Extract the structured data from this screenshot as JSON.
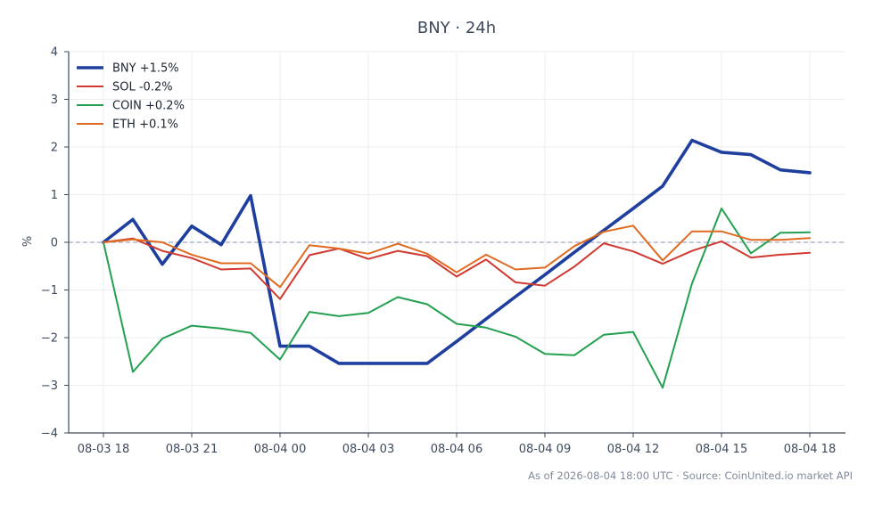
{
  "chart_data": {
    "type": "line",
    "title": "BNY · 24h",
    "xlabel": "",
    "ylabel": "%",
    "ylim": [
      -4,
      4
    ],
    "yticks": [
      -4,
      -3,
      -2,
      -1,
      0,
      1,
      2,
      3,
      4
    ],
    "x": [
      "2026-08-03 18:00",
      "2026-08-03 19:00",
      "2026-08-03 20:00",
      "2026-08-03 21:00",
      "2026-08-03 22:00",
      "2026-08-03 23:00",
      "2026-08-04 00:00",
      "2026-08-04 01:00",
      "2026-08-04 02:00",
      "2026-08-04 03:00",
      "2026-08-04 04:00",
      "2026-08-04 05:00",
      "2026-08-04 06:00",
      "2026-08-04 07:00",
      "2026-08-04 08:00",
      "2026-08-04 09:00",
      "2026-08-04 10:00",
      "2026-08-04 11:00",
      "2026-08-04 12:00",
      "2026-08-04 13:00",
      "2026-08-04 14:00",
      "2026-08-04 15:00",
      "2026-08-04 16:00",
      "2026-08-04 17:00",
      "2026-08-04 18:00"
    ],
    "xticks": [
      {
        "at": "2026-08-03 18:00",
        "label": "08-03 18"
      },
      {
        "at": "2026-08-03 21:00",
        "label": "08-03 21"
      },
      {
        "at": "2026-08-04 00:00",
        "label": "08-04 00"
      },
      {
        "at": "2026-08-04 03:00",
        "label": "08-04 03"
      },
      {
        "at": "2026-08-04 06:00",
        "label": "08-04 06"
      },
      {
        "at": "2026-08-04 09:00",
        "label": "08-04 09"
      },
      {
        "at": "2026-08-04 12:00",
        "label": "08-04 12"
      },
      {
        "at": "2026-08-04 15:00",
        "label": "08-04 15"
      },
      {
        "at": "2026-08-04 18:00",
        "label": "08-04 18"
      }
    ],
    "reference_line": {
      "y": 0,
      "style": "dashed"
    },
    "grid": true,
    "legend_position": "top-left",
    "series": [
      {
        "name": "BNY +1.5%",
        "color": "#1f3f9e",
        "width": "thick",
        "values": [
          0.0,
          0.48,
          -0.46,
          0.34,
          -0.05,
          0.98,
          -2.18,
          -2.18,
          -2.54,
          -2.54,
          -2.54,
          -2.54,
          -2.08,
          -1.61,
          -1.14,
          -0.68,
          -0.21,
          0.25,
          0.71,
          1.18,
          2.14,
          1.89,
          1.84,
          1.52,
          1.46
        ]
      },
      {
        "name": "SOL -0.2%",
        "color": "#d03a30",
        "width": "normal",
        "values": [
          0.0,
          0.08,
          -0.18,
          -0.33,
          -0.57,
          -0.55,
          -1.19,
          -0.27,
          -0.13,
          -0.35,
          -0.18,
          -0.29,
          -0.72,
          -0.36,
          -0.84,
          -0.91,
          -0.51,
          -0.02,
          -0.19,
          -0.45,
          -0.18,
          0.02,
          -0.32,
          -0.26,
          -0.22
        ]
      },
      {
        "name": "COIN +0.2%",
        "color": "#23a050",
        "width": "normal",
        "values": [
          0.0,
          -2.72,
          -2.02,
          -1.75,
          -1.81,
          -1.9,
          -2.46,
          -1.46,
          -1.55,
          -1.48,
          -1.15,
          -1.3,
          -1.71,
          -1.79,
          -1.98,
          -2.34,
          -2.37,
          -1.94,
          -1.88,
          -3.05,
          -0.86,
          0.71,
          -0.23,
          0.2,
          0.21
        ]
      },
      {
        "name": "ETH +0.1%",
        "color": "#e06a20",
        "width": "normal",
        "values": [
          0.0,
          0.06,
          0.0,
          -0.26,
          -0.44,
          -0.44,
          -0.94,
          -0.06,
          -0.13,
          -0.24,
          -0.03,
          -0.24,
          -0.63,
          -0.26,
          -0.57,
          -0.53,
          -0.08,
          0.22,
          0.35,
          -0.38,
          0.23,
          0.23,
          0.05,
          0.05,
          0.09
        ]
      }
    ]
  },
  "footer": {
    "source_note": "As of 2026-08-04 18:00 UTC · Source: CoinUnited.io market API"
  }
}
